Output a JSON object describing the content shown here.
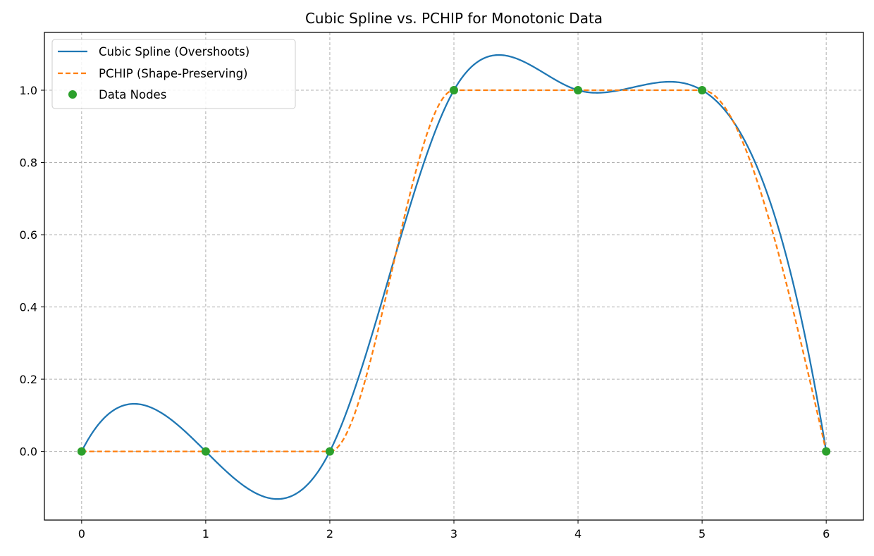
{
  "chart_data": {
    "type": "line",
    "title": "Cubic Spline vs. PCHIP for Monotonic Data",
    "xlabel": "",
    "ylabel": "",
    "xlim": [
      -0.3,
      6.3
    ],
    "ylim": [
      -0.19,
      1.16
    ],
    "x_ticks": [
      0,
      1,
      2,
      3,
      4,
      5,
      6
    ],
    "x_tick_labels": [
      "0",
      "1",
      "2",
      "3",
      "4",
      "5",
      "6"
    ],
    "y_ticks": [
      0.0,
      0.2,
      0.4,
      0.6,
      0.8,
      1.0
    ],
    "y_tick_labels": [
      "0.0",
      "0.2",
      "0.4",
      "0.6",
      "0.8",
      "1.0"
    ],
    "grid": true,
    "legend_position": "top-left",
    "nodes": {
      "x": [
        0,
        1,
        2,
        3,
        4,
        5,
        6
      ],
      "y": [
        0,
        0,
        0,
        1,
        1,
        1,
        0
      ]
    },
    "series": [
      {
        "name": "Cubic Spline (Overshoots)",
        "style": "solid",
        "color": "#1f77b4",
        "method": "cubic-spline-not-a-knot"
      },
      {
        "name": "PCHIP (Shape-Preserving)",
        "style": "dashed",
        "color": "#ff7f0e",
        "method": "pchip"
      },
      {
        "name": "Data Nodes",
        "style": "markers",
        "color": "#2ca02c",
        "method": "points"
      }
    ]
  }
}
